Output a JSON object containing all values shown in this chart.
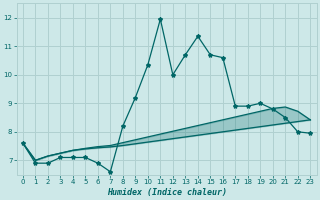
{
  "xlabel": "Humidex (Indice chaleur)",
  "background_color": "#cde8e8",
  "grid_color": "#b0d0d0",
  "line_color": "#006666",
  "fill_color": "#006666",
  "xlim": [
    -0.5,
    23.5
  ],
  "ylim": [
    6.5,
    12.5
  ],
  "yticks": [
    7,
    8,
    9,
    10,
    11,
    12
  ],
  "xticks": [
    0,
    1,
    2,
    3,
    4,
    5,
    6,
    7,
    8,
    9,
    10,
    11,
    12,
    13,
    14,
    15,
    16,
    17,
    18,
    19,
    20,
    21,
    22,
    23
  ],
  "main_x": [
    0,
    1,
    2,
    3,
    4,
    5,
    6,
    7,
    8,
    9,
    10,
    11,
    12,
    13,
    14,
    15,
    16,
    17,
    18,
    19,
    20,
    21,
    22,
    23
  ],
  "main_y": [
    7.6,
    6.9,
    6.9,
    7.1,
    7.1,
    7.1,
    6.9,
    6.6,
    8.2,
    9.2,
    10.35,
    11.95,
    10.0,
    10.7,
    11.35,
    10.7,
    10.6,
    8.9,
    8.9,
    9.0,
    8.8,
    8.5,
    8.0,
    7.95
  ],
  "upper_x": [
    0,
    1,
    2,
    3,
    4,
    5,
    6,
    7,
    8,
    9,
    10,
    11,
    12,
    13,
    14,
    15,
    16,
    17,
    18,
    19,
    20,
    21,
    22,
    23
  ],
  "upper_y": [
    7.6,
    7.0,
    7.15,
    7.25,
    7.35,
    7.42,
    7.48,
    7.52,
    7.62,
    7.72,
    7.82,
    7.92,
    8.02,
    8.12,
    8.22,
    8.32,
    8.42,
    8.52,
    8.62,
    8.72,
    8.82,
    8.87,
    8.72,
    8.42
  ],
  "lower_x": [
    0,
    1,
    2,
    3,
    4,
    5,
    6,
    7,
    8,
    9,
    10,
    11,
    12,
    13,
    14,
    15,
    16,
    17,
    18,
    19,
    20,
    21,
    22,
    23
  ],
  "lower_y": [
    7.6,
    7.0,
    7.15,
    7.25,
    7.35,
    7.4,
    7.44,
    7.47,
    7.52,
    7.58,
    7.64,
    7.7,
    7.76,
    7.82,
    7.88,
    7.94,
    8.0,
    8.06,
    8.12,
    8.18,
    8.24,
    8.3,
    8.36,
    8.42
  ]
}
